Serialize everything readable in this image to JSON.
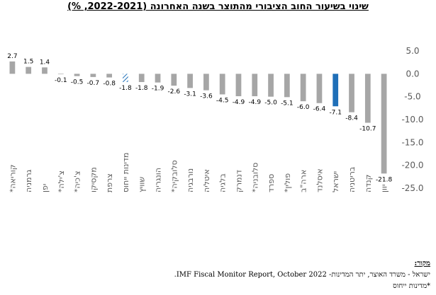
{
  "title": "שינוי בשיעור החוב הציבורי מהתוצר בשנה האחרונה (2022-2021, %)",
  "source": {
    "label": "מקור:",
    "line1": "ישראל - משרד האוצר, יתר המדינות- IMF Fiscal Monitor Report, October 2022.",
    "line2": "*מדינות ייחוס"
  },
  "colors": {
    "default_bar": "#a6a6a6",
    "israel_bar": "#1f6fb8",
    "average_bar_hatch": "#1f6fb8"
  },
  "chart_data": {
    "type": "bar",
    "title": "שינוי בשיעור החוב הציבורי מהתוצר בשנה האחרונה (2022-2021, %)",
    "xlabel": "",
    "ylabel": "",
    "ylim": [
      -25,
      5
    ],
    "yticks": [
      "5.0",
      "0.0",
      "-5.0",
      "-10.0",
      "-15.0",
      "-20.0",
      "-25.0"
    ],
    "y_axis_position": "right",
    "grid": false,
    "categories": [
      "קוריאה*",
      "גרמניה",
      "יפן",
      "צ'ילה*",
      "צ'כיה*",
      "מקסיקו",
      "צרפת",
      "מדינות ייחוס",
      "שוויץ",
      "הונגריה",
      "סלובקיה*",
      "נורבגיה",
      "איטליה",
      "בלגיה",
      "דנמרק",
      "סלובניה*",
      "ספרד",
      "פולין*",
      "ארה\"ב",
      "איסלנד",
      "ישראל",
      "בריטניה",
      "קנדה",
      "יוון"
    ],
    "values": [
      2.7,
      1.5,
      1.4,
      -0.1,
      -0.5,
      -0.7,
      -0.8,
      -1.8,
      -1.8,
      -1.9,
      -2.6,
      -3.1,
      -3.6,
      -4.5,
      -4.9,
      -4.9,
      -5.0,
      -5.1,
      -6.0,
      -6.4,
      -7.1,
      -8.4,
      -10.7,
      -21.8
    ],
    "value_labels": [
      "2.7",
      "1.5",
      "1.4",
      "-0.1",
      "-0.5",
      "-0.7",
      "-0.8",
      "-1.8",
      "-1.8",
      "-1.9",
      "-2.6",
      "-3.1",
      "-3.6",
      "-4.5",
      "-4.9",
      "-4.9",
      "-5.0",
      "-5.1",
      "-6.0",
      "-6.4",
      "-7.1",
      "-8.4",
      "-10.7",
      "-21.8"
    ],
    "highlight": {
      "ישראל": "israel",
      "מדינות ייחוס": "average"
    }
  }
}
